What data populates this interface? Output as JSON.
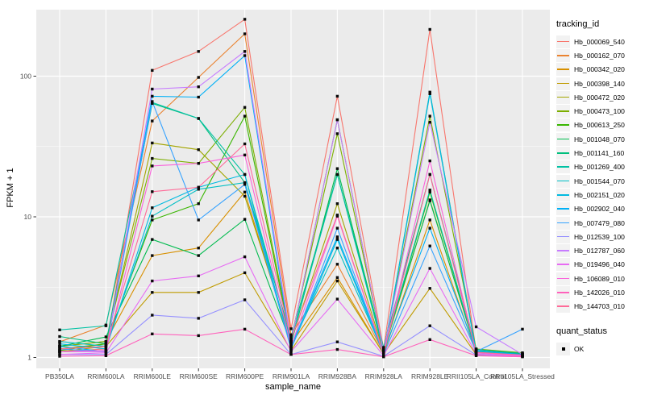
{
  "figure": {
    "panel_background": "#EBEBEB",
    "grid_color": "#FFFFFF",
    "tick_text_color": "#4D4D4D",
    "point_color": "#0A0A0A"
  },
  "chart_data": {
    "type": "line",
    "xlabel": "sample_name",
    "ylabel": "FPKM + 1",
    "y_scale": "log10",
    "y_ticks": [
      "1",
      "10",
      "100"
    ],
    "y_tick_values": [
      1,
      10,
      100
    ],
    "y_minor_gridlines": [
      3.162,
      31.62
    ],
    "ylim": [
      1,
      300
    ],
    "grid": "on",
    "legend_position": "right",
    "point_shape": "square",
    "categories": [
      "PB350LA",
      "RRIM600LA",
      "RRIM600LE",
      "RRIM600SE",
      "RRIM600PE",
      "RRIM901LA",
      "RRIM928BA",
      "RRIM928LA",
      "RRIM928LE",
      "RRII105LA_Control",
      "RRII105LA_Stressed"
    ],
    "series": [
      {
        "name": "Hb_000069_540",
        "color": "#F8766D",
        "values": [
          1.1,
          1.15,
          110,
          150,
          254,
          1.6,
          72,
          1.15,
          215,
          1.1,
          1.05
        ]
      },
      {
        "name": "Hb_000162_070",
        "color": "#EA8331",
        "values": [
          1.29,
          1.7,
          48,
          98,
          200,
          1.45,
          4.6,
          1.08,
          76,
          1.12,
          1.04
        ]
      },
      {
        "name": "Hb_000342_020",
        "color": "#D89000",
        "values": [
          1.2,
          1.3,
          5.3,
          6.0,
          15,
          1.25,
          3.7,
          1.06,
          9.5,
          1.08,
          1.03
        ]
      },
      {
        "name": "Hb_000398_140",
        "color": "#C09B00",
        "values": [
          1.1,
          1.2,
          2.9,
          2.9,
          4.0,
          1.12,
          3.5,
          1.06,
          3.1,
          1.05,
          1.02
        ]
      },
      {
        "name": "Hb_000472_020",
        "color": "#A3A500",
        "values": [
          1.15,
          1.25,
          33.5,
          30,
          14,
          1.3,
          12.4,
          1.1,
          13.2,
          1.1,
          1.05
        ]
      },
      {
        "name": "Hb_000473_100",
        "color": "#7CAE00",
        "values": [
          1.2,
          1.3,
          26,
          24,
          60,
          1.35,
          39,
          1.12,
          52,
          1.15,
          1.08
        ]
      },
      {
        "name": "Hb_000613_250",
        "color": "#39B600",
        "values": [
          1.12,
          1.25,
          9.5,
          12.4,
          52,
          1.3,
          49,
          1.1,
          15,
          1.1,
          1.05
        ]
      },
      {
        "name": "Hb_001048_070",
        "color": "#00BB4E",
        "values": [
          1.2,
          1.4,
          6.9,
          5.3,
          9.6,
          1.25,
          22,
          1.15,
          13,
          1.12,
          1.06
        ]
      },
      {
        "name": "Hb_001141_160",
        "color": "#00BF7D",
        "values": [
          1.41,
          1.25,
          64,
          50,
          17.5,
          1.4,
          20,
          1.18,
          20,
          1.14,
          1.07
        ]
      },
      {
        "name": "Hb_001269_400",
        "color": "#00C1A3",
        "values": [
          1.57,
          1.68,
          65,
          50,
          20,
          1.3,
          20,
          1.1,
          15.5,
          1.1,
          1.05
        ]
      },
      {
        "name": "Hb_001544_070",
        "color": "#00BFC4",
        "values": [
          1.3,
          1.2,
          10.1,
          15.7,
          17.5,
          1.2,
          6.0,
          1.08,
          77,
          1.1,
          1.04
        ]
      },
      {
        "name": "Hb_002151_020",
        "color": "#00BAE0",
        "values": [
          1.25,
          1.15,
          11.6,
          16.2,
          20,
          1.15,
          6.9,
          1.06,
          75,
          1.08,
          1.03
        ]
      },
      {
        "name": "Hb_002902_040",
        "color": "#00B0F6",
        "values": [
          1.2,
          1.1,
          72,
          71,
          140,
          1.2,
          7.2,
          1.1,
          8.3,
          1.12,
          1.05
        ]
      },
      {
        "name": "Hb_007479_080",
        "color": "#35A2FF",
        "values": [
          1.15,
          1.1,
          66,
          9.5,
          17,
          1.15,
          8.3,
          1.05,
          6.2,
          1.1,
          1.59
        ]
      },
      {
        "name": "Hb_012539_100",
        "color": "#9590FF",
        "values": [
          1.05,
          1.05,
          2.0,
          1.9,
          2.57,
          1.05,
          1.29,
          1.02,
          1.68,
          1.04,
          1.02
        ]
      },
      {
        "name": "Hb_012787_060",
        "color": "#C77CFF",
        "values": [
          1.1,
          1.1,
          81,
          84,
          150,
          1.3,
          49,
          1.1,
          47,
          1.65,
          1.05
        ]
      },
      {
        "name": "Hb_019496_040",
        "color": "#E76BF3",
        "values": [
          1.05,
          1.08,
          3.5,
          3.8,
          5.2,
          1.1,
          2.6,
          1.03,
          4.3,
          1.06,
          1.02
        ]
      },
      {
        "name": "Hb_106089_010",
        "color": "#FA62DB",
        "values": [
          1.1,
          1.12,
          23,
          24,
          27.5,
          1.2,
          10.1,
          1.06,
          25,
          1.08,
          1.03
        ]
      },
      {
        "name": "Hb_142026_010",
        "color": "#FF62BC",
        "values": [
          1.02,
          1.03,
          1.47,
          1.43,
          1.59,
          1.05,
          1.14,
          1.01,
          1.34,
          1.03,
          1.01
        ]
      },
      {
        "name": "Hb_144703_010",
        "color": "#FF6A98",
        "values": [
          1.15,
          1.2,
          15.1,
          16.2,
          33,
          1.35,
          10.3,
          1.07,
          20,
          1.09,
          1.04
        ]
      }
    ],
    "legend": {
      "color_title": "tracking_id",
      "shape_title": "quant_status",
      "shape_items": [
        {
          "label": "OK"
        }
      ]
    }
  }
}
